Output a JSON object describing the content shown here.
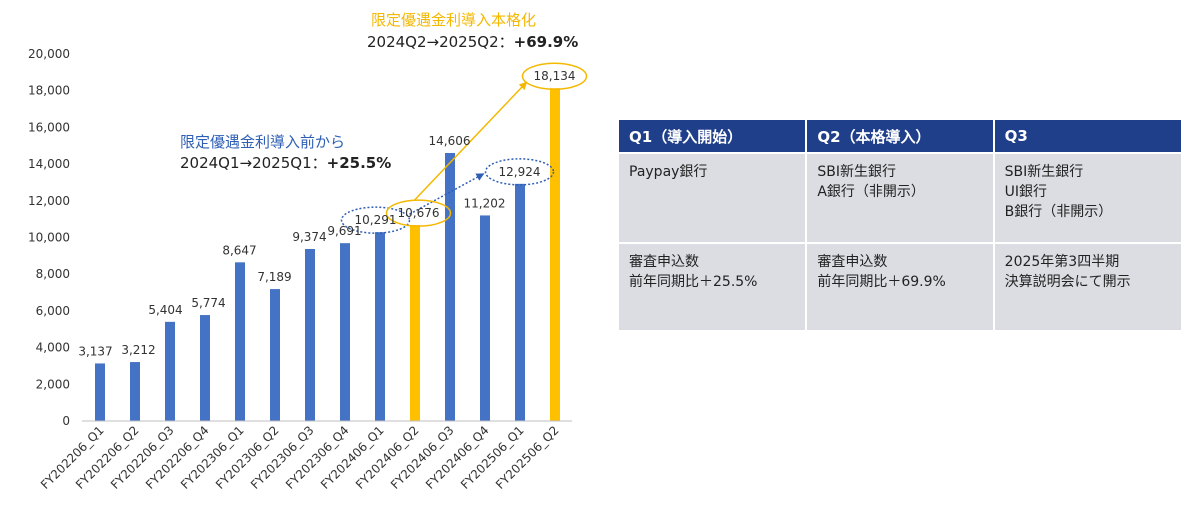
{
  "chart_data": {
    "type": "bar",
    "categories": [
      "FY202206_Q1",
      "FY202206_Q2",
      "FY202206_Q3",
      "FY202206_Q4",
      "FY202306_Q1",
      "FY202306_Q2",
      "FY202306_Q3",
      "FY202306_Q4",
      "FY202406_Q1",
      "FY202406_Q2",
      "FY202406_Q3",
      "FY202406_Q4",
      "FY202506_Q1",
      "FY202506_Q2"
    ],
    "values": [
      3137,
      3212,
      5404,
      5774,
      8647,
      7189,
      9374,
      9691,
      10291,
      10676,
      14606,
      11202,
      12924,
      18134
    ],
    "value_labels": [
      "3,137",
      "3,212",
      "5,404",
      "5,774",
      "8,647",
      "7,189",
      "9,374",
      "9,691",
      "10,291",
      "10,676",
      "14,606",
      "11,202",
      "12,924",
      "18,134"
    ],
    "highlighted": [
      false,
      false,
      false,
      false,
      false,
      false,
      false,
      false,
      false,
      true,
      false,
      false,
      false,
      true
    ],
    "ylim": [
      0,
      20000
    ],
    "yticks": [
      "0",
      "2,000",
      "4,000",
      "6,000",
      "8,000",
      "10,000",
      "12,000",
      "14,000",
      "16,000",
      "18,000",
      "20,000"
    ],
    "xlabel": "",
    "ylabel": "",
    "grid": false,
    "colors": {
      "bar": "#4472c4",
      "highlight": "#ffc000",
      "annotation_blue": "#2e5fb5",
      "annotation_orange": "#f5b800"
    }
  },
  "annotations": {
    "full": {
      "title": "限定優遇金利導入本格化",
      "range": "2024Q2→2025Q2：",
      "change": "+69.9%"
    },
    "pre": {
      "title": "限定優遇金利導入前から",
      "range": "2024Q1→2025Q1：",
      "change": "+25.5%"
    }
  },
  "table": {
    "headers": [
      "Q1（導入開始）",
      "Q2（本格導入）",
      "Q3"
    ],
    "rows": [
      [
        [
          "Paypay銀行"
        ],
        [
          "SBI新生銀行",
          "A銀行（非開示）"
        ],
        [
          "SBI新生銀行",
          "UI銀行",
          "B銀行（非開示）"
        ]
      ],
      [
        [
          "審査申込数",
          "前年同期比＋25.5%"
        ],
        [
          "審査申込数",
          "前年同期比＋69.9%"
        ],
        [
          "2025年第3四半期",
          "決算説明会にて開示"
        ]
      ]
    ]
  }
}
